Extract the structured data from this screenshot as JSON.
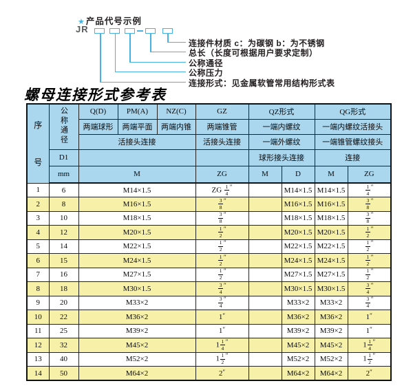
{
  "colors": {
    "accent": "#45b2e2",
    "header_bg": "#aad6ee",
    "alt_row_bg": "#f6f0a9"
  },
  "diagram": {
    "star": "★",
    "title": "产品代号示例",
    "prefix": "JR",
    "labels": [
      "连接件材质  c：为碳钢  b：为不锈钢",
      "总长（长度可根据用户要求定制）",
      "公称通径",
      "公称压力",
      "连接形式：见金属软管常用结构形式表"
    ]
  },
  "table": {
    "title": "螺母连接形式参考表",
    "header": {
      "seq": [
        "序",
        "号"
      ],
      "nominal": "公称通径",
      "d1": "D1",
      "mm": "mm",
      "q": "Q(D)",
      "pm": "PM(A)",
      "nz": "NZ(C)",
      "gz": "GZ",
      "qz": "QZ形式",
      "qg": "QG形式",
      "q_desc": "两端球形",
      "pm_desc": "两端平面",
      "nz_desc": "两端内锥",
      "gz_desc": "两端锥管",
      "qz_desc1": "一端内螺纹",
      "qg_desc1": "一端内螺纹活接头",
      "union_conn": "活接头连接",
      "gz_conn": "活接头连接",
      "qz_desc2": "一端外螺纹",
      "qg_desc2": "一端锥管螺纹接头",
      "qz_conn": "球形接头连接",
      "qg_conn": "连接",
      "m": "M",
      "zg": "ZG",
      "qz_m": "M",
      "qz_d": "D",
      "qg_m": "M",
      "qg_zg": "ZG"
    },
    "rows": [
      {
        "no": "1",
        "dn": "6",
        "m": "M14×1.5",
        "zg": "ZG {1/4}″",
        "qz_m": "",
        "qz_d": "M14×1.5",
        "qg_m": "M14×1.5",
        "qg_zg": "{1/4}″"
      },
      {
        "no": "2",
        "dn": "8",
        "m": "M16×1.5",
        "zg": "{3/8}″",
        "qz_m": "",
        "qz_d": "M16×1.5",
        "qg_m": "M16×1.5",
        "qg_zg": "{3/8}″"
      },
      {
        "no": "3",
        "dn": "10",
        "m": "M18×1.5",
        "zg": "{3/8}″",
        "qz_m": "",
        "qz_d": "M18×1.5",
        "qg_m": "M18×1.5",
        "qg_zg": "{3/8}″"
      },
      {
        "no": "4",
        "dn": "12",
        "m": "M20×1.5",
        "zg": "{1/2}″",
        "qz_m": "",
        "qz_d": "M20×1.5",
        "qg_m": "M20×1.5",
        "qg_zg": "{1/2}″"
      },
      {
        "no": "5",
        "dn": "14",
        "m": "M22×1.5",
        "zg": "{1/2}″",
        "qz_m": "",
        "qz_d": "M22×1.5",
        "qg_m": "M22×1.5",
        "qg_zg": "{1/2}″"
      },
      {
        "no": "6",
        "dn": "15",
        "m": "M24×1.5",
        "zg": "{1/2}″",
        "qz_m": "",
        "qz_d": "M24×1.5",
        "qg_m": "M24×1.5",
        "qg_zg": "{1/2}″"
      },
      {
        "no": "7",
        "dn": "16",
        "m": "M27×1.5",
        "zg": "{1/2}″",
        "qz_m": "",
        "qz_d": "M27×1.5",
        "qg_m": "M27×1.5",
        "qg_zg": "{1/2}″"
      },
      {
        "no": "8",
        "dn": "18",
        "m": "M30×1.5",
        "zg": "{3/4}″",
        "qz_m": "",
        "qz_d": "M30×1.5",
        "qg_m": "M30×1.5",
        "qg_zg": "{3/4}″"
      },
      {
        "no": "9",
        "dn": "20",
        "m": "M33×2",
        "zg": "{3/4}″",
        "qz_m": "",
        "qz_d": "M33×2",
        "qg_m": "M33×2",
        "qg_zg": "{3/4}″"
      },
      {
        "no": "10",
        "dn": "22",
        "m": "M36×2",
        "zg": "1″",
        "qz_m": "",
        "qz_d": "M36×2",
        "qg_m": "M36×2",
        "qg_zg": "1″"
      },
      {
        "no": "11",
        "dn": "25",
        "m": "M39×2",
        "zg": "1″",
        "qz_m": "",
        "qz_d": "M39×2",
        "qg_m": "M39×2",
        "qg_zg": "1″"
      },
      {
        "no": "12",
        "dn": "32",
        "m": "M45×2",
        "zg": "1{1/4}″",
        "qz_m": "",
        "qz_d": "M45×2",
        "qg_m": "M45×2",
        "qg_zg": "1{1/4}″"
      },
      {
        "no": "13",
        "dn": "40",
        "m": "M52×2",
        "zg": "1{1/2}″",
        "qz_m": "",
        "qz_d": "M52×2",
        "qg_m": "M52×2",
        "qg_zg": "1{1/2}″"
      },
      {
        "no": "14",
        "dn": "50",
        "m": "M64×2",
        "zg": "2″",
        "qz_m": "",
        "qz_d": "M64×2",
        "qg_m": "M64×2",
        "qg_zg": "2″"
      }
    ]
  }
}
